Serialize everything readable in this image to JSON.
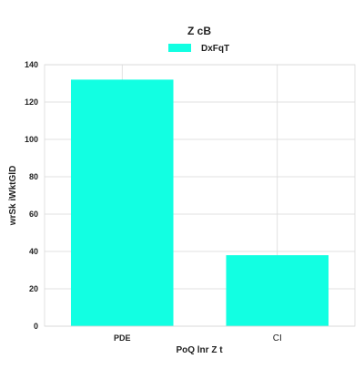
{
  "chart_data": {
    "type": "bar",
    "title": "Z cB",
    "categories": [
      "PDE",
      "CI"
    ],
    "series": [
      {
        "name": "DxFqT",
        "values": [
          132,
          38
        ],
        "color": "#12FFE2"
      }
    ],
    "xlabel": "PoQ lnr Z   t",
    "ylabel": "wrSk iWktGlD",
    "ylim": [
      0,
      140
    ],
    "yticks": [
      0,
      20,
      40,
      60,
      80,
      100,
      120,
      140
    ],
    "grid": true,
    "legend_position": "top-center"
  }
}
